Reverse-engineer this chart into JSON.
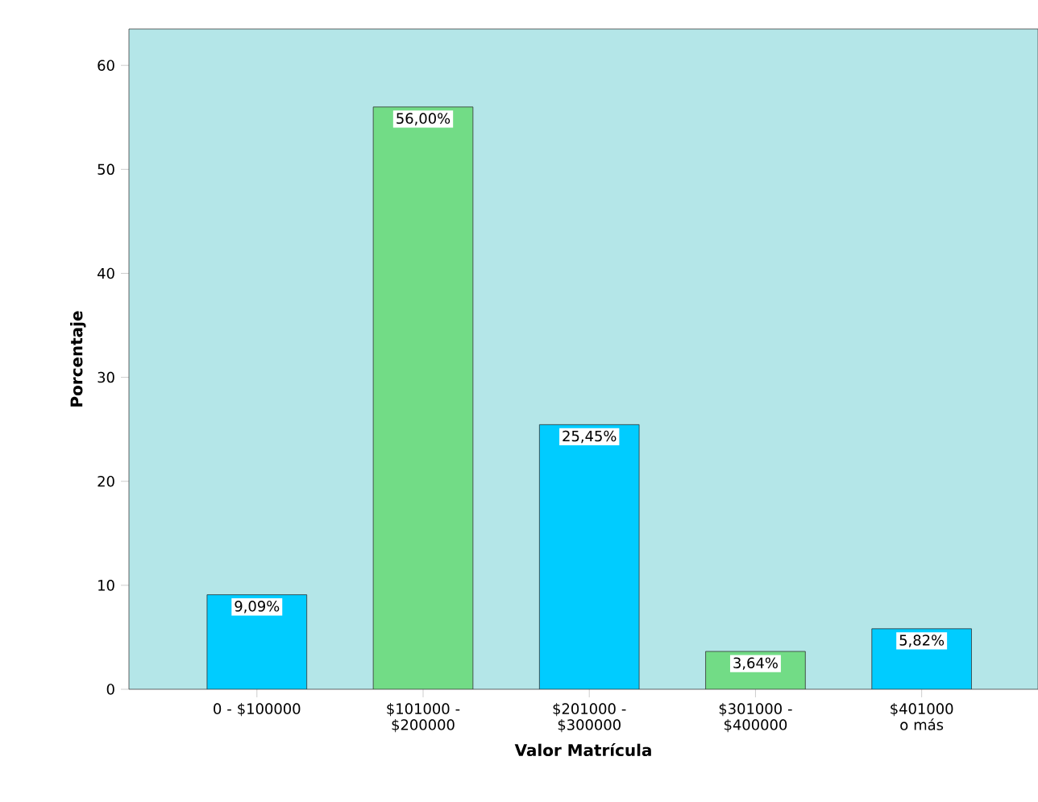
{
  "chart_data": {
    "type": "bar",
    "xlabel": "Valor Matrícula",
    "ylabel": "Porcentaje",
    "categories": [
      "0 - $100000",
      "$101000 - $200000",
      "$201000 - $300000",
      "$301000 - $400000",
      "$401000 o más"
    ],
    "values": [
      9.09,
      56.0,
      25.45,
      3.64,
      5.82
    ],
    "colors": [
      "#00ccff",
      "#72dc86",
      "#00ccff",
      "#72dc86",
      "#00ccff"
    ],
    "value_labels": [
      "9,09%",
      "56,00%",
      "25,45%",
      "3,64%",
      "5,82%"
    ],
    "ylim": [
      0,
      63.5
    ],
    "yticks": [
      0,
      10,
      20,
      30,
      40,
      50,
      60
    ],
    "grid": false
  }
}
